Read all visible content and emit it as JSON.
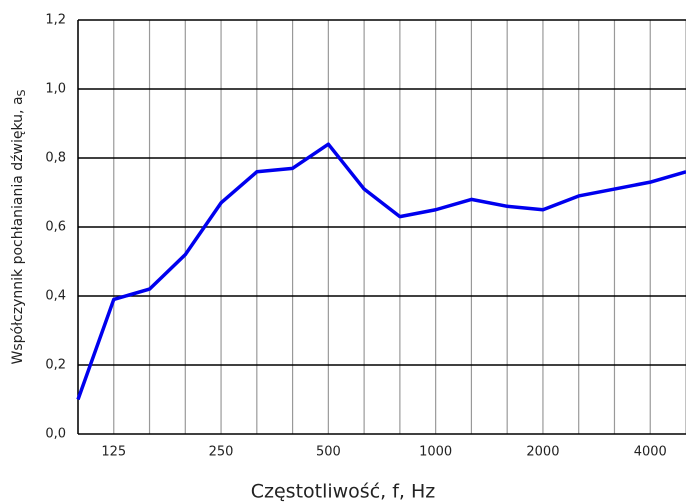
{
  "chart_data": {
    "type": "line",
    "x_label": "Częstotliwość, f, Hz",
    "y_label": "Współczynnik pochłaniania dźwięku, a",
    "y_label_sub": "S",
    "categories": [
      null,
      "125",
      null,
      null,
      "250",
      null,
      null,
      "500",
      null,
      null,
      "1000",
      null,
      null,
      "2000",
      null,
      null,
      "4000",
      null
    ],
    "series": [
      {
        "name": "as",
        "color": "#0000ee",
        "values": [
          0.1,
          0.39,
          0.42,
          0.52,
          0.67,
          0.76,
          0.77,
          0.84,
          0.71,
          0.63,
          0.65,
          0.68,
          0.66,
          0.65,
          0.69,
          0.71,
          0.73,
          0.76
        ]
      }
    ],
    "ylim": [
      0,
      1.2
    ],
    "yticks": [
      {
        "value": 0,
        "label": "0,0"
      },
      {
        "value": 0.2,
        "label": "0,2"
      },
      {
        "value": 0.4,
        "label": "0,4"
      },
      {
        "value": 0.6,
        "label": "0,6"
      },
      {
        "value": 0.8,
        "label": "0,8"
      },
      {
        "value": 1.0,
        "label": "1,0"
      },
      {
        "value": 1.2,
        "label": "1,2"
      }
    ],
    "grid": true
  }
}
